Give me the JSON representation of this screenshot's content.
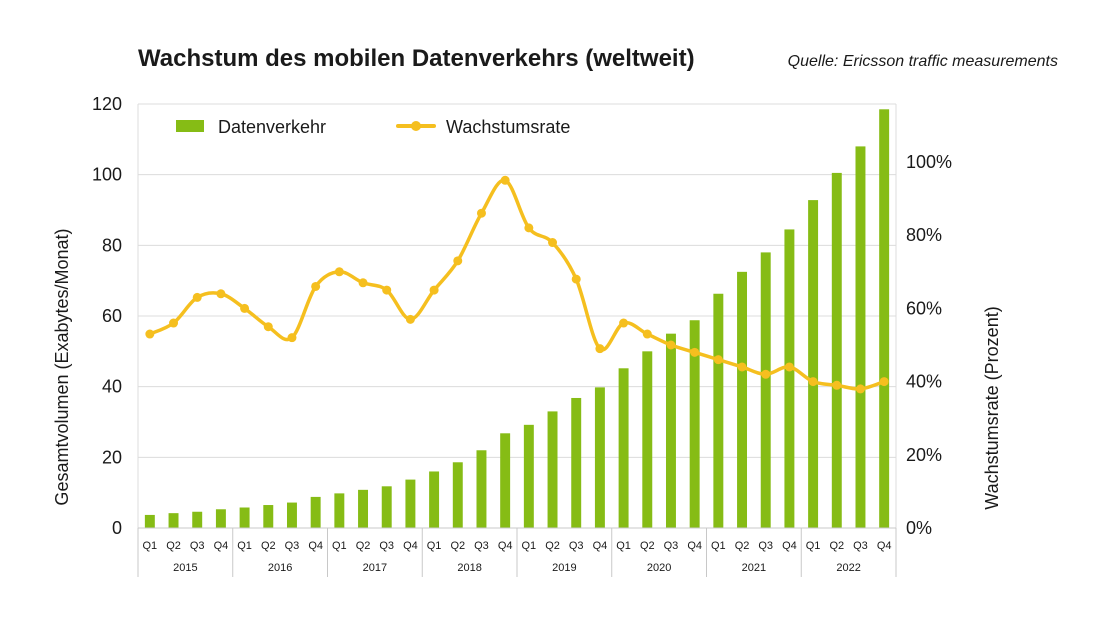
{
  "chart_data": {
    "type": "bar+line",
    "title": "Wachstum des mobilen Datenverkehrs (weltweit)",
    "source": "Quelle: Ericsson traffic measurements",
    "quarters": [
      "Q1",
      "Q2",
      "Q3",
      "Q4",
      "Q1",
      "Q2",
      "Q3",
      "Q4",
      "Q1",
      "Q2",
      "Q3",
      "Q4",
      "Q1",
      "Q2",
      "Q3",
      "Q4",
      "Q1",
      "Q2",
      "Q3",
      "Q4",
      "Q1",
      "Q2",
      "Q3",
      "Q4",
      "Q1",
      "Q2",
      "Q3",
      "Q4",
      "Q1",
      "Q2",
      "Q3",
      "Q4"
    ],
    "years": [
      "2015",
      "2016",
      "2017",
      "2018",
      "2019",
      "2020",
      "2021",
      "2022"
    ],
    "ylabel_left": "Gesamtvolumen (Exabytes/Monat)",
    "ylabel_right": "Wachstumsrate (Prozent)",
    "ylim_left": [
      0,
      120
    ],
    "yticks_left": [
      "0",
      "20",
      "40",
      "60",
      "80",
      "100",
      "120"
    ],
    "ylim_right": [
      0,
      100
    ],
    "yticks_right": [
      "0%",
      "20%",
      "40%",
      "60%",
      "80%",
      "100%"
    ],
    "grid": true,
    "legend_position": "top-left",
    "series": [
      {
        "name": "Datenverkehr",
        "kind": "bar",
        "axis": "left",
        "color": "#86bc15",
        "values": [
          3.7,
          4.2,
          4.6,
          5.3,
          5.8,
          6.5,
          7.2,
          8.8,
          9.8,
          10.8,
          11.8,
          13.7,
          16.0,
          18.6,
          22.0,
          26.8,
          29.2,
          33.0,
          36.8,
          39.8,
          45.2,
          50.0,
          55.0,
          58.8,
          66.3,
          72.5,
          78.0,
          84.5,
          92.8,
          100.5,
          108.0,
          118.5
        ]
      },
      {
        "name": "Wachstumsrate",
        "kind": "line",
        "axis": "right",
        "color": "#f5bf1f",
        "values": [
          53,
          56,
          63,
          64,
          60,
          55,
          52,
          66,
          70,
          67,
          65,
          57,
          65,
          73,
          86,
          95,
          82,
          78,
          68,
          49,
          56,
          53,
          50,
          48,
          46,
          44,
          42,
          44,
          40,
          39,
          38,
          40
        ]
      }
    ]
  }
}
